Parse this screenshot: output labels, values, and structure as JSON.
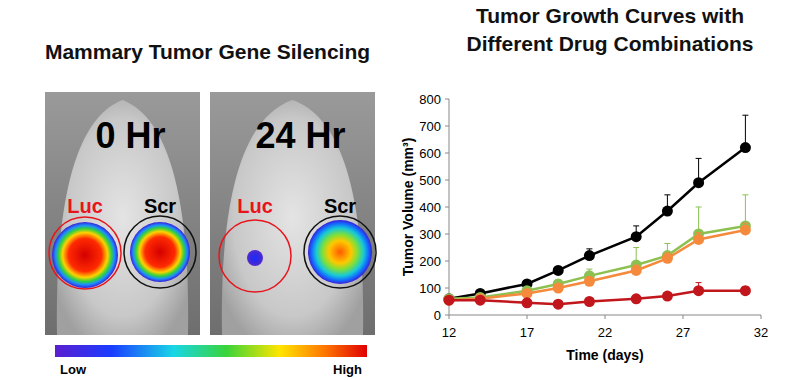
{
  "chart_data": {
    "type": "line",
    "title": "Tumor Growth Curves with Different Drug Combinations",
    "x_label": "Time (days)",
    "y_label": "Tumor Volume (mm³)",
    "x": [
      12,
      14,
      17,
      19,
      21,
      24,
      26,
      28,
      31
    ],
    "xlim": [
      12,
      32
    ],
    "xticks": [
      12,
      17,
      22,
      27,
      32
    ],
    "ylim": [
      0,
      800
    ],
    "yticks": [
      0,
      100,
      200,
      300,
      400,
      500,
      600,
      700,
      800
    ],
    "grid": false,
    "marker": "circle",
    "series": [
      {
        "color": "#000000",
        "values": [
          60,
          80,
          115,
          165,
          220,
          290,
          385,
          490,
          620
        ],
        "errors": [
          5,
          8,
          10,
          15,
          25,
          40,
          60,
          90,
          120
        ]
      },
      {
        "color": "#8cc152",
        "values": [
          60,
          65,
          90,
          115,
          145,
          185,
          220,
          300,
          330
        ],
        "errors": [
          5,
          6,
          10,
          15,
          25,
          65,
          45,
          100,
          115
        ]
      },
      {
        "color": "#f58a3c",
        "values": [
          55,
          60,
          80,
          100,
          125,
          165,
          210,
          280,
          315
        ],
        "errors": [
          4,
          5,
          8,
          10,
          15,
          20,
          20,
          25,
          25
        ]
      },
      {
        "color": "#c0161c",
        "values": [
          55,
          55,
          45,
          40,
          50,
          60,
          70,
          90,
          90
        ],
        "errors": [
          4,
          5,
          5,
          5,
          8,
          10,
          12,
          30,
          15
        ]
      }
    ]
  },
  "panel": {
    "title": "Mammary Tumor Gene Silencing",
    "images": [
      {
        "label": "0 Hr",
        "regions": [
          "Luc",
          "Scr"
        ]
      },
      {
        "label": "24 Hr",
        "regions": [
          "Luc",
          "Scr"
        ]
      }
    ],
    "colorbar": {
      "low": "Low",
      "high": "High"
    }
  }
}
